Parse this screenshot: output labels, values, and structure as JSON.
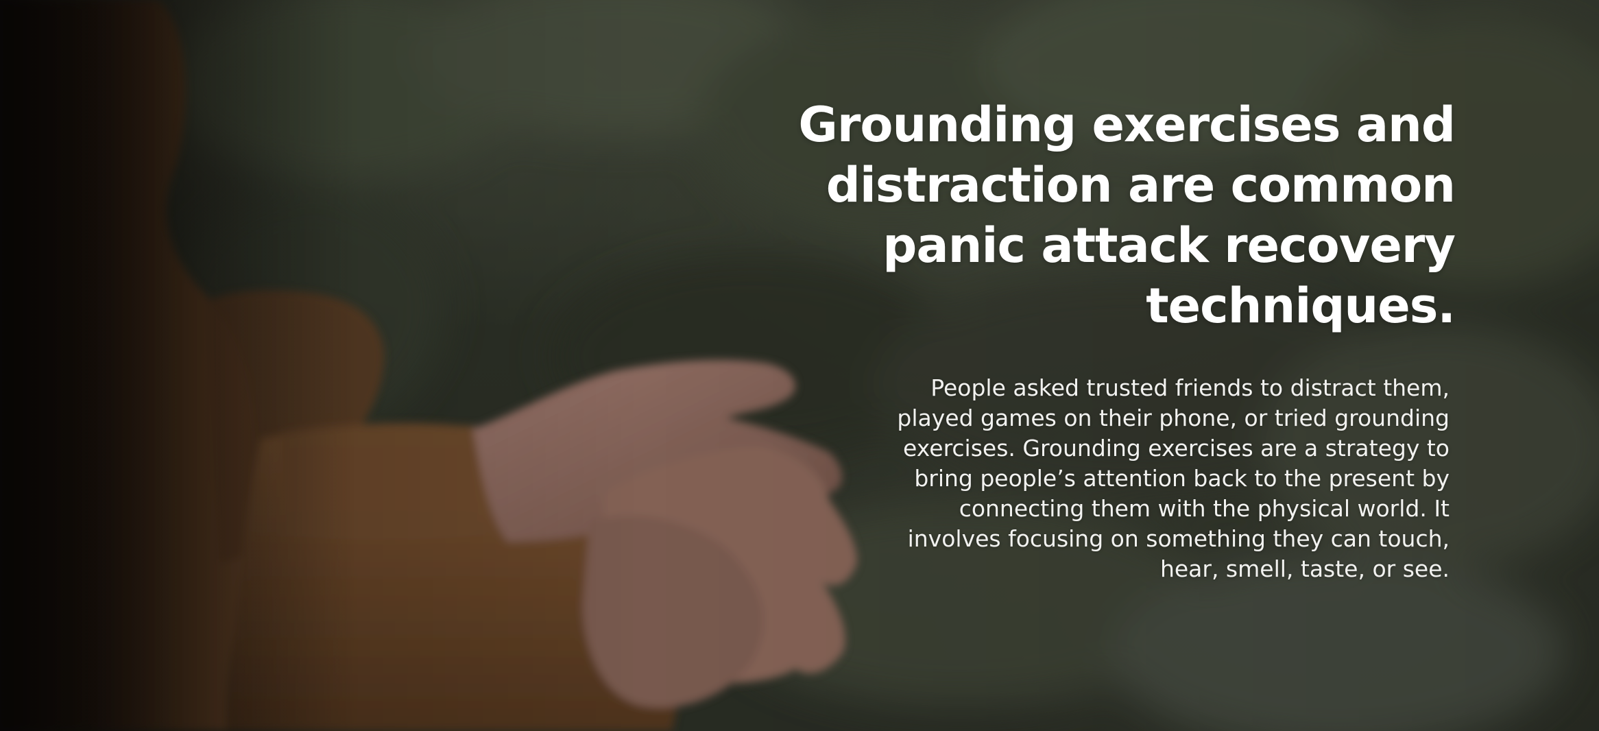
{
  "hero": {
    "background_image": "person-in-brown-sweater-with-clasped-hands-overlooking-forest",
    "headline": "Grounding exercises and distraction are common panic attack recovery techniques.",
    "body": "People asked trusted friends to distract them, played games on their phone, or tried grounding exercises. Grounding exercises are a strategy to bring people’s attention back to the present by connecting them with the physical world. It involves focusing on something they can touch, hear, smell, taste, or see."
  },
  "colors": {
    "text": "#ffffff",
    "sweater": "#7a5434",
    "skin": "#a67c66",
    "foliage": "#4c5243"
  }
}
